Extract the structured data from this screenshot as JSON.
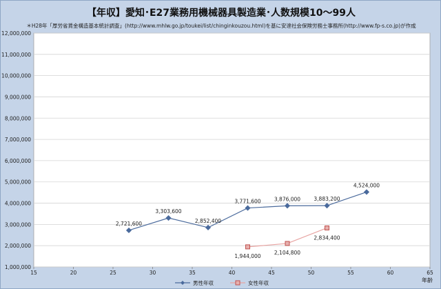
{
  "title": "【年収】愛知･E27業務用機械器具製造業･人数規模10～99人",
  "source": "＊H28年「厚労省賃金構造基本統計調査」(http://www.mhlw.go.jp/toukei/list/chinginkouzou.html)を基に安達社会保険労務士事務所(http://www.fp-s.co.jp)が作成",
  "colors": {
    "background": "#c5d4e8",
    "plot": "#ffffff",
    "male": "#4a6a9c",
    "female": "#c0504d",
    "female_line": "#e8a4a2"
  },
  "chart_data": {
    "type": "line",
    "xlabel": "年齢",
    "ylabel": "",
    "xlim": [
      15,
      65
    ],
    "xticks": [
      15,
      20,
      25,
      30,
      35,
      40,
      45,
      50,
      55,
      60,
      65
    ],
    "ylim": [
      1000000,
      12000000
    ],
    "yticks": [
      1000000,
      2000000,
      3000000,
      4000000,
      5000000,
      6000000,
      7000000,
      8000000,
      9000000,
      10000000,
      11000000,
      12000000
    ],
    "ytick_labels": [
      "1,000,000",
      "2,000,000",
      "3,000,000",
      "4,000,000",
      "5,000,000",
      "6,000,000",
      "7,000,000",
      "8,000,000",
      "9,000,000",
      "10,000,000",
      "11,000,000",
      "12,000,000"
    ],
    "grid": true,
    "legend_position": "bottom",
    "series": [
      {
        "name": "男性年収",
        "marker": "diamond",
        "x": [
          27,
          32,
          37,
          42,
          47,
          52,
          57
        ],
        "y": [
          2721600,
          3303600,
          2852400,
          3771600,
          3876000,
          3883200,
          4524000
        ],
        "labels": [
          "2,721,600",
          "3,303,600",
          "2,852,400",
          "3,771,600",
          "3,876,000",
          "3,883,200",
          "4,524,000"
        ]
      },
      {
        "name": "女性年収",
        "marker": "square",
        "x": [
          42,
          47,
          52
        ],
        "y": [
          1944000,
          2104800,
          2834400
        ],
        "labels": [
          "1,944,000",
          "2,104,800",
          "2,834,400"
        ]
      }
    ]
  }
}
